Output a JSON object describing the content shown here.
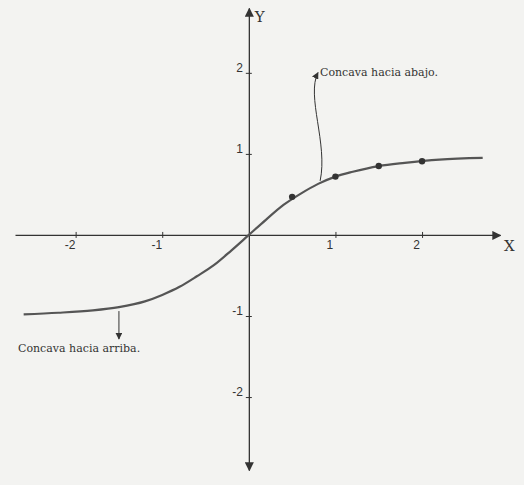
{
  "chart_data": {
    "type": "line",
    "x_label": "X",
    "y_label": "Y",
    "annotations": [
      "Concava hacia abajo.",
      "Concava hacia arriba."
    ],
    "xlim": [
      -2.7,
      2.9
    ],
    "ylim": [
      -2.9,
      2.8
    ],
    "xticks": [
      -2,
      -1,
      1,
      2
    ],
    "yticks": [
      -2,
      -1,
      1,
      2
    ],
    "grid": false,
    "series": [
      {
        "type": "line",
        "color": "#555555",
        "line_style": "solid",
        "x": [
          -2.6,
          -2.2,
          -1.8,
          -1.5,
          -1.2,
          -1,
          -0.8,
          -0.6,
          -0.4,
          -0.2,
          0,
          0.2,
          0.4,
          0.6,
          0.8,
          1,
          1.2,
          1.5,
          1.8,
          2.2,
          2.7
        ],
        "values": [
          -0.98,
          -0.96,
          -0.93,
          -0.89,
          -0.82,
          -0.74,
          -0.64,
          -0.51,
          -0.37,
          -0.19,
          0,
          0.19,
          0.37,
          0.51,
          0.63,
          0.72,
          0.78,
          0.85,
          0.89,
          0.93,
          0.95
        ]
      },
      {
        "type": "scatter",
        "color": "#333333",
        "marker": "circle",
        "x": [
          0.5,
          1,
          1.5,
          2
        ],
        "values": [
          0.47,
          0.72,
          0.85,
          0.91
        ]
      }
    ]
  }
}
